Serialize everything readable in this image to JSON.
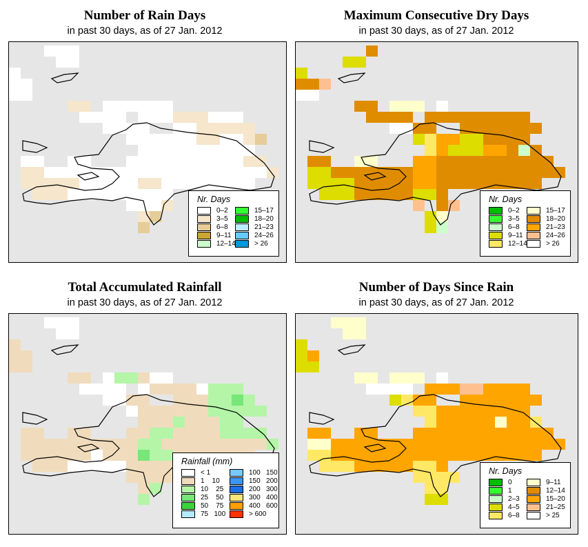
{
  "maps": [
    {
      "title": "Number of Rain Days",
      "subtitle": "in past 30 days, as of  27 Jan. 2012",
      "legend": {
        "title": "Nr. Days",
        "items": [
          {
            "label": "0–2",
            "color": "#ffffff"
          },
          {
            "label": "3–5",
            "color": "#f5e6cc"
          },
          {
            "label": "6–8",
            "color": "#e6cc99"
          },
          {
            "label": "9–11",
            "color": "#cca633"
          },
          {
            "label": "12–14",
            "color": "#ccffcc"
          },
          {
            "label": "15–17",
            "color": "#33ff33"
          },
          {
            "label": "18–20",
            "color": "#00bb00"
          },
          {
            "label": "21–23",
            "color": "#bbeeff"
          },
          {
            "label": "24–26",
            "color": "#66ccff"
          },
          {
            "label": "> 26",
            "color": "#0099dd"
          }
        ]
      },
      "cells": [
        "...000..................",
        "....00..................",
        "0.......................",
        "00......................",
        "00......................",
        ".....11.000000..........",
        "......0000.000111000....",
        "........0000..0011111...",
        "..........000000110012..",
        "...........0000000000...",
        ".00..00...000000000011..",
        ".1100000000000000000001.",
        ".11111000001100000000...",
        "..111000000000..........",
        "..........0001..........",
        "...........12...........",
        "...........2............"
      ]
    },
    {
      "title": "Maximum Consecutive Dry Days",
      "subtitle": "in past 30 days, as of  27 Jan. 2012",
      "legend": {
        "title": "Nr. Days",
        "items": [
          {
            "label": "0–2",
            "color": "#00bb00"
          },
          {
            "label": "3–5",
            "color": "#33ff33"
          },
          {
            "label": "6–8",
            "color": "#ccffcc"
          },
          {
            "label": "9–11",
            "color": "#dddd00"
          },
          {
            "label": "12–14",
            "color": "#ffe866"
          },
          {
            "label": "15–17",
            "color": "#ffffcc"
          },
          {
            "label": "18–20",
            "color": "#e08c00"
          },
          {
            "label": "21–23",
            "color": "#ffa500"
          },
          {
            "label": "24–26",
            "color": "#ffc090"
          },
          {
            "label": "> 26",
            "color": "#ffffff"
          }
        ]
      },
      "cells": [
        "......6.................",
        "....33..................",
        "3.......................",
        "668.....................",
        "99......................",
        ".....66.555.9...........",
        "......6666.666666666....",
        "........9966..6666666...",
        "..........3477336666....",
        "...........4733377626...",
        ".66..55...776666666666..",
        ".3366666667766666666666.",
        ".33336666677666666666...",
        "..33366666336...........",
        "..........8.68..........",
        "...........35...........",
        "...........32..........."
      ]
    },
    {
      "title": "Total Accumulated Rainfall",
      "subtitle": "in past 30 days, as of  27 Jan. 2012",
      "legend": {
        "title": "Rainfall (mm)",
        "items": [
          {
            "label": "< 1",
            "color": "#ffffff"
          },
          {
            "label": "1    10",
            "color": "#f0dcbc"
          },
          {
            "label": "10    25",
            "color": "#b4f5a8"
          },
          {
            "label": "25    50",
            "color": "#78e678"
          },
          {
            "label": "50    75",
            "color": "#3cd23c"
          },
          {
            "label": "75   100",
            "color": "#b4ebfa"
          },
          {
            "label": "100   150",
            "color": "#78c8ff"
          },
          {
            "label": "150   200",
            "color": "#3c96f5"
          },
          {
            "label": "200   300",
            "color": "#1e6ee6"
          },
          {
            "label": "300   400",
            "color": "#ffe678"
          },
          {
            "label": "400   600",
            "color": "#ffa000"
          },
          {
            "label": "> 600",
            "color": "#ff3200"
          }
        ]
      },
      "cells": [
        "...000..................",
        "....00..................",
        "1.......................",
        "11......................",
        "11......................",
        ".....11.022100..........",
        "......0000.011110222....",
        "........0011..1112232...",
        "..........011111122222..",
        "...........111211122....",
        ".11..11...112211112222..",
        ".1111111111221111111112.",
        ".11111101113221111111...",
        "..111000001111..........",
        "..........1111..........",
        "...........12...........",
        "...........2............"
      ]
    },
    {
      "title": "Number of Days Since Rain",
      "subtitle": "in past 30 days, as of  27 Jan. 2012",
      "legend": {
        "title": "Nr. Days",
        "items": [
          {
            "label": "0",
            "color": "#00bb00"
          },
          {
            "label": "1",
            "color": "#33ff33"
          },
          {
            "label": "2–3",
            "color": "#ccffcc"
          },
          {
            "label": "4–5",
            "color": "#dddd00"
          },
          {
            "label": "6–8",
            "color": "#ffe866"
          },
          {
            "label": "9–11",
            "color": "#ffffcc"
          },
          {
            "label": "12–14",
            "color": "#e08c00"
          },
          {
            "label": "15–20",
            "color": "#ffa500"
          },
          {
            "label": "21–25",
            "color": "#ffc090"
          },
          {
            "label": "> 25",
            "color": "#ffffff"
          }
        ]
      },
      "cells": [
        "...555..................",
        "....55..................",
        "3.......................",
        "37......................",
        "33......................",
        ".....55.555.9...........",
        "......9999.777887777....",
        "........3477..7777777...",
        "..........4477777777....",
        "...........4777775774...",
        ".77..77...777777777777..",
        ".5577777777777777777777.",
        ".44777777777777777777...",
        "..44477777447...........",
        "..........4444..........",
        "...........44...........",
        "...........33..........."
      ]
    }
  ]
}
